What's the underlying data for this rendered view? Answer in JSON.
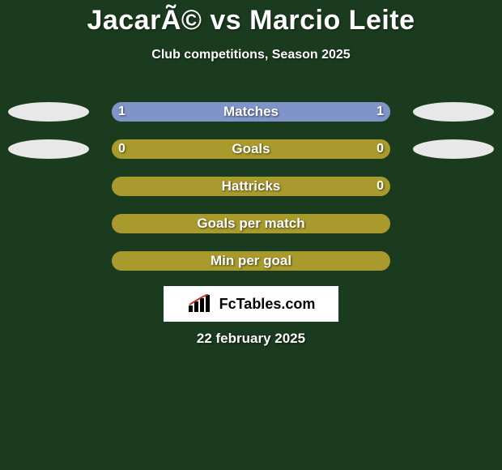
{
  "background_color": "#1b3b1e",
  "title": {
    "text": "JacarÃ© vs Marcio Leite",
    "color": "#ffffff",
    "fontsize": 34
  },
  "subtitle": {
    "text": "Club competitions, Season 2025",
    "color": "#ffffff",
    "fontsize": 16
  },
  "bar_style": {
    "track_color": "#a89a2c",
    "left_fill_color": "#7f94c8",
    "right_fill_color": "#7f94c8",
    "label_color": "#ffffff",
    "value_color": "#ffffff",
    "label_fontsize": 17,
    "value_fontsize": 16
  },
  "rows": [
    {
      "label": "Matches",
      "left_value": "1",
      "right_value": "1",
      "left_pct": 50,
      "right_pct": 50
    },
    {
      "label": "Goals",
      "left_value": "0",
      "right_value": "0",
      "left_pct": 0,
      "right_pct": 0
    },
    {
      "label": "Hattricks",
      "left_value": "",
      "right_value": "0",
      "left_pct": 0,
      "right_pct": 0
    },
    {
      "label": "Goals per match",
      "left_value": "",
      "right_value": "",
      "left_pct": 0,
      "right_pct": 0
    },
    {
      "label": "Min per goal",
      "left_value": "",
      "right_value": "",
      "left_pct": 0,
      "right_pct": 0
    }
  ],
  "ellipses": {
    "left": [
      {
        "row": 0,
        "width": 100,
        "height": 24,
        "color": "#e8e8e8"
      },
      {
        "row": 1,
        "width": 100,
        "height": 24,
        "color": "#e8e8e8"
      }
    ],
    "right": [
      {
        "row": 0,
        "width": 100,
        "height": 24,
        "color": "#e8e8e8"
      },
      {
        "row": 1,
        "width": 100,
        "height": 24,
        "color": "#e8e8e8"
      }
    ]
  },
  "logo": {
    "box_bg": "#ffffff",
    "text": "FcTables.com",
    "text_fontsize": 18
  },
  "date": {
    "text": "22 february 2025",
    "color": "#ffffff",
    "fontsize": 17
  }
}
